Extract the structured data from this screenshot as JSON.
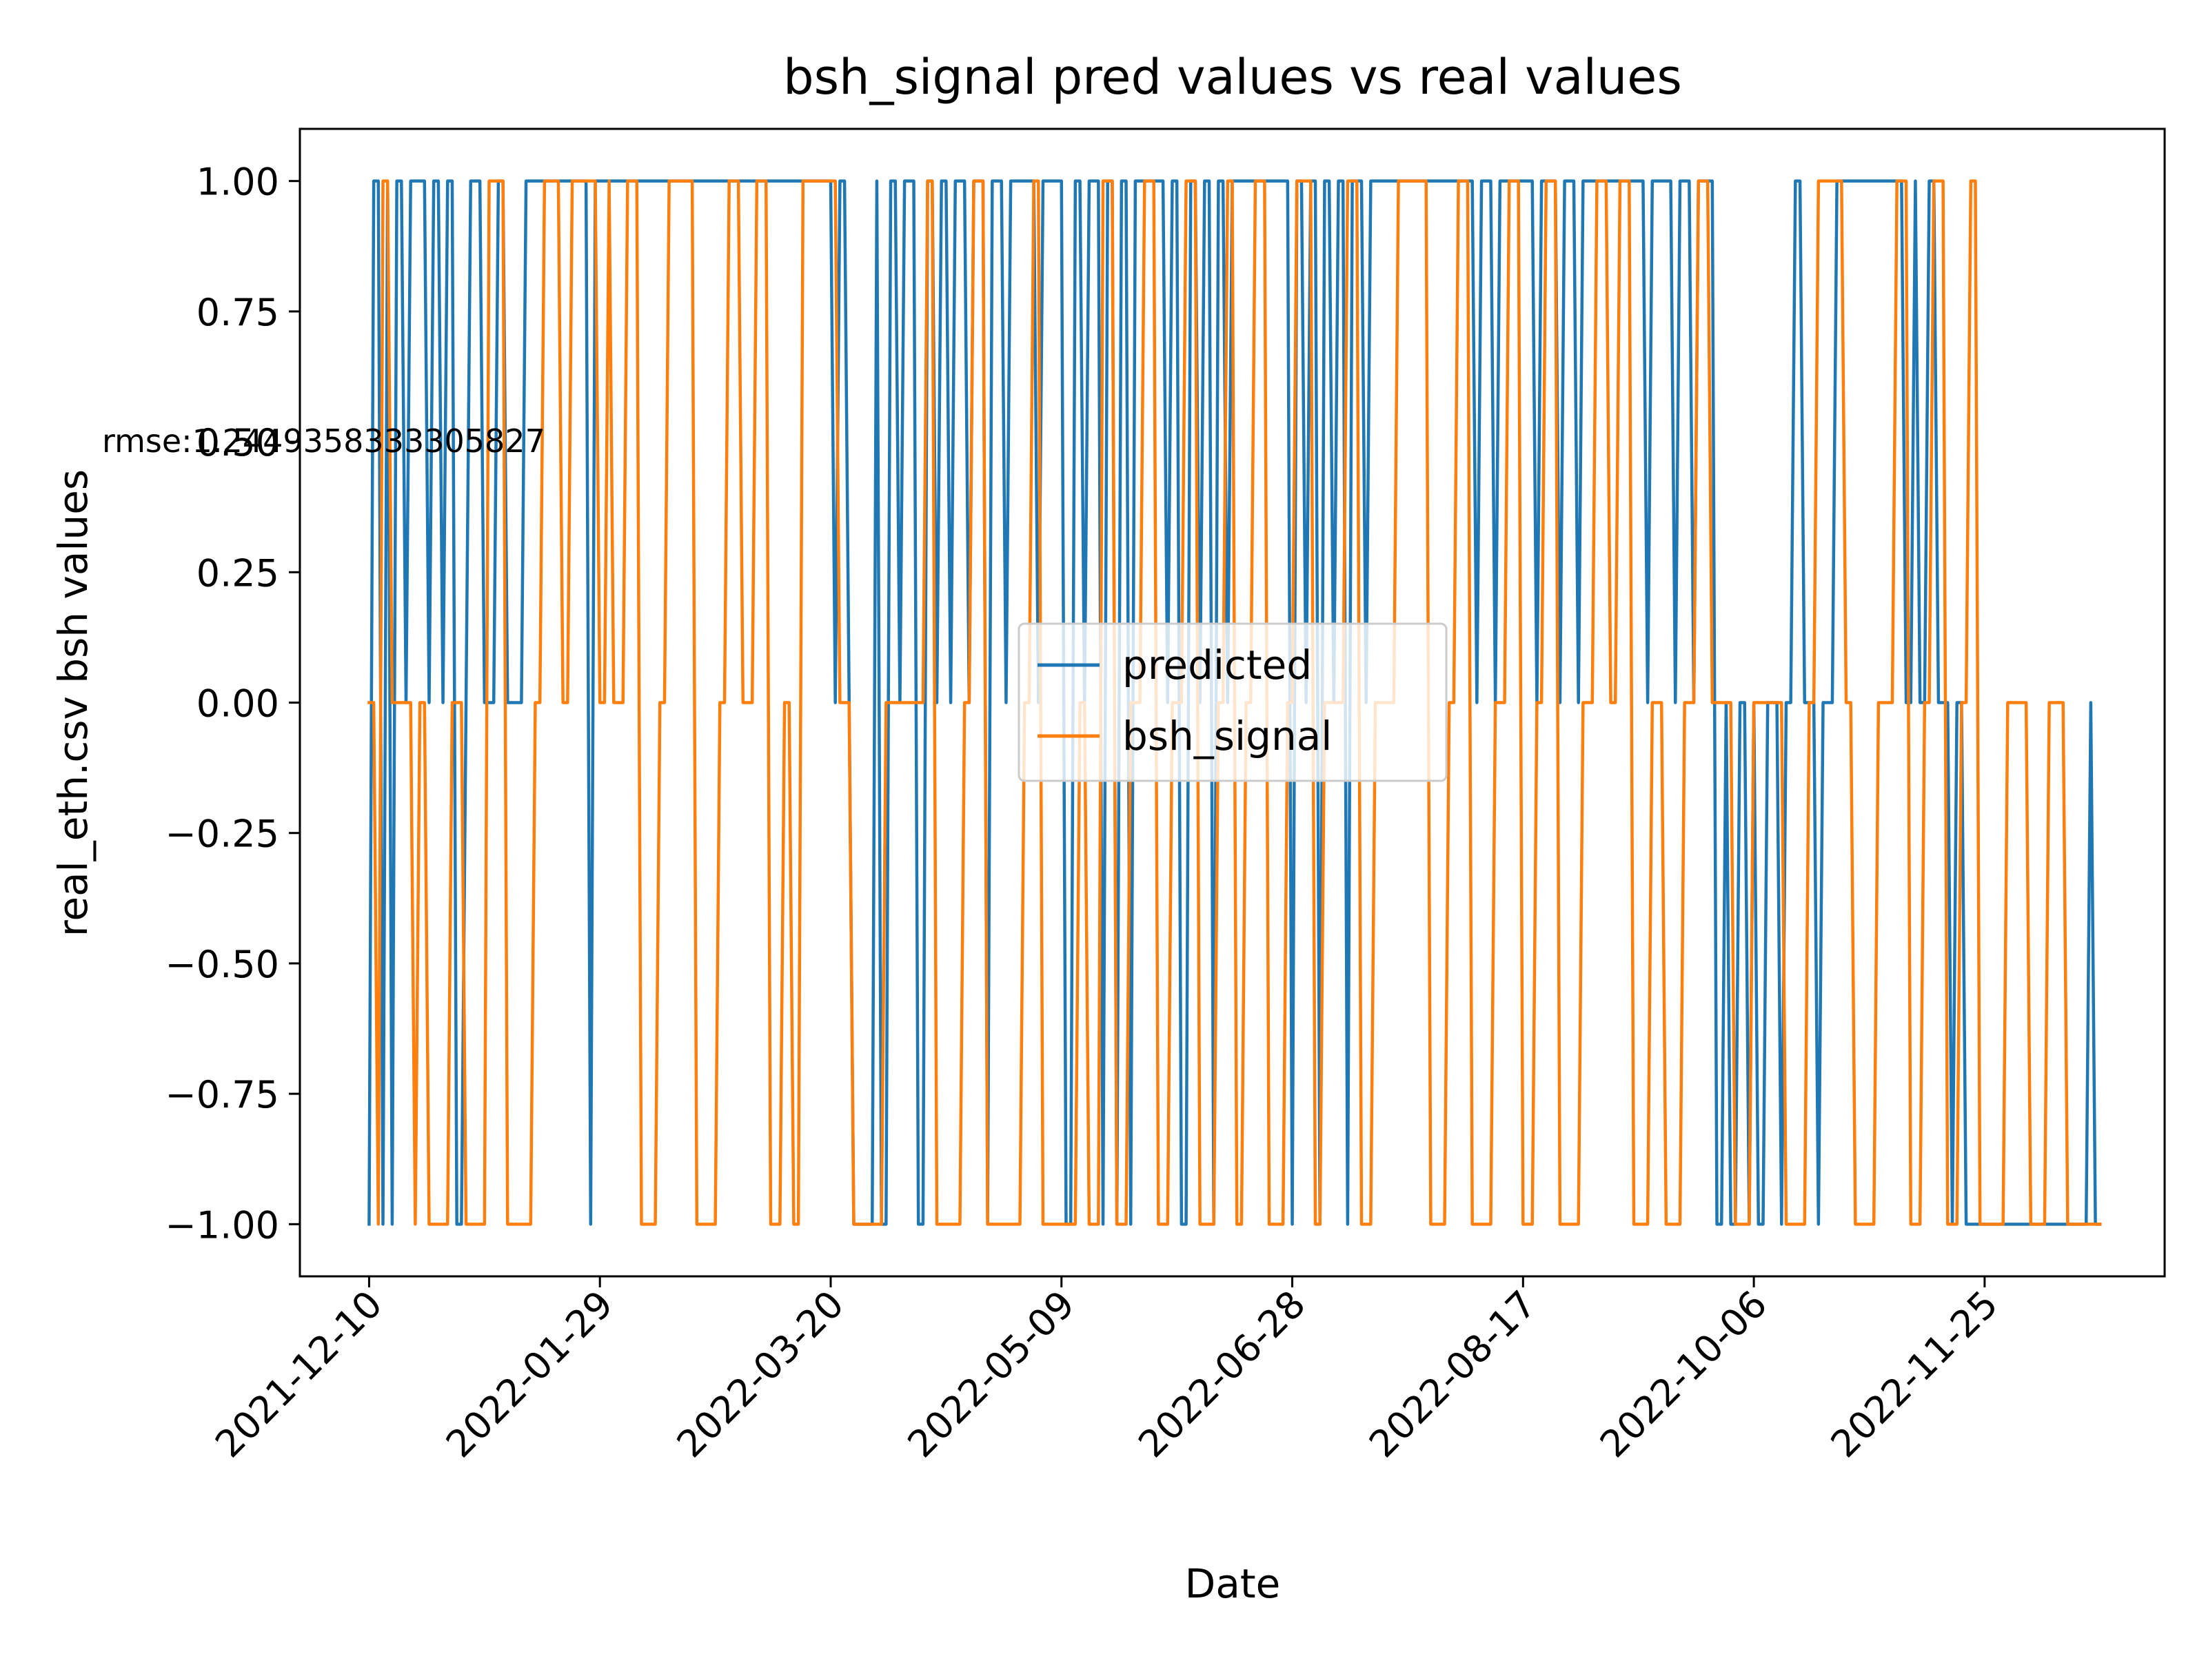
{
  "chart_data": {
    "type": "line",
    "title": "bsh_signal pred values vs real values",
    "xlabel": "Date",
    "ylabel": "real_eth.csv bsh values",
    "annotation": "rmse:1.2449358333305827",
    "x_start": "2021-12-10",
    "x_end": "2022-12-20",
    "xlim": [
      "2021-11-25",
      "2023-01-03"
    ],
    "ylim": [
      -1.1,
      1.1
    ],
    "x_ticks": [
      "2021-12-10",
      "2022-01-29",
      "2022-03-20",
      "2022-05-09",
      "2022-06-28",
      "2022-08-17",
      "2022-10-06",
      "2022-11-25"
    ],
    "y_ticks": [
      1.0,
      0.75,
      0.5,
      0.25,
      0.0,
      -0.25,
      -0.5,
      -0.75,
      -1.0
    ],
    "y_tick_labels": [
      "1.00",
      "0.75",
      "0.50",
      "0.25",
      "0.00",
      "−0.25",
      "−0.50",
      "−0.75",
      "−1.00"
    ],
    "legend": {
      "placement": "center"
    },
    "grid": false,
    "series": [
      {
        "name": "predicted",
        "color": "#1f77b4",
        "steps": [
          [
            "2021-12-10",
            -1
          ],
          [
            "2021-12-11",
            1
          ],
          [
            "2021-12-13",
            -1
          ],
          [
            "2021-12-14",
            1
          ],
          [
            "2021-12-15",
            -1
          ],
          [
            "2021-12-16",
            1
          ],
          [
            "2021-12-18",
            0
          ],
          [
            "2021-12-19",
            1
          ],
          [
            "2021-12-23",
            0
          ],
          [
            "2021-12-24",
            1
          ],
          [
            "2021-12-26",
            0
          ],
          [
            "2021-12-27",
            1
          ],
          [
            "2021-12-29",
            -1
          ],
          [
            "2021-12-31",
            0
          ],
          [
            "2022-01-01",
            1
          ],
          [
            "2022-01-04",
            0
          ],
          [
            "2022-01-07",
            1
          ],
          [
            "2022-01-09",
            0
          ],
          [
            "2022-01-13",
            1
          ],
          [
            "2022-01-27",
            -1
          ],
          [
            "2022-01-28",
            1
          ],
          [
            "2022-03-21",
            0
          ],
          [
            "2022-03-22",
            1
          ],
          [
            "2022-03-24",
            0
          ],
          [
            "2022-03-25",
            -1
          ],
          [
            "2022-03-30",
            1
          ],
          [
            "2022-03-31",
            -1
          ],
          [
            "2022-04-02",
            1
          ],
          [
            "2022-04-04",
            0
          ],
          [
            "2022-04-05",
            1
          ],
          [
            "2022-04-08",
            -1
          ],
          [
            "2022-04-10",
            1
          ],
          [
            "2022-04-12",
            0
          ],
          [
            "2022-04-13",
            1
          ],
          [
            "2022-04-15",
            0
          ],
          [
            "2022-04-16",
            1
          ],
          [
            "2022-04-19",
            0
          ],
          [
            "2022-04-20",
            1
          ],
          [
            "2022-04-23",
            -1
          ],
          [
            "2022-04-24",
            1
          ],
          [
            "2022-04-27",
            0
          ],
          [
            "2022-04-28",
            1
          ],
          [
            "2022-05-04",
            0
          ],
          [
            "2022-05-05",
            1
          ],
          [
            "2022-05-10",
            -1
          ],
          [
            "2022-05-12",
            1
          ],
          [
            "2022-05-14",
            0
          ],
          [
            "2022-05-15",
            1
          ],
          [
            "2022-05-18",
            -1
          ],
          [
            "2022-05-19",
            1
          ],
          [
            "2022-05-21",
            -1
          ],
          [
            "2022-05-22",
            1
          ],
          [
            "2022-05-24",
            -1
          ],
          [
            "2022-05-25",
            1
          ],
          [
            "2022-06-01",
            0
          ],
          [
            "2022-06-02",
            1
          ],
          [
            "2022-06-04",
            -1
          ],
          [
            "2022-06-06",
            1
          ],
          [
            "2022-06-08",
            0
          ],
          [
            "2022-06-09",
            1
          ],
          [
            "2022-06-11",
            -1
          ],
          [
            "2022-06-12",
            1
          ],
          [
            "2022-06-14",
            0
          ],
          [
            "2022-06-15",
            1
          ],
          [
            "2022-06-28",
            -1
          ],
          [
            "2022-06-29",
            1
          ],
          [
            "2022-07-01",
            0
          ],
          [
            "2022-07-02",
            1
          ],
          [
            "2022-07-04",
            -1
          ],
          [
            "2022-07-05",
            1
          ],
          [
            "2022-07-07",
            0
          ],
          [
            "2022-07-08",
            1
          ],
          [
            "2022-07-10",
            -1
          ],
          [
            "2022-07-11",
            1
          ],
          [
            "2022-07-14",
            0
          ],
          [
            "2022-07-15",
            1
          ],
          [
            "2022-08-07",
            0
          ],
          [
            "2022-08-08",
            1
          ],
          [
            "2022-08-11",
            0
          ],
          [
            "2022-08-12",
            1
          ],
          [
            "2022-08-20",
            0
          ],
          [
            "2022-08-21",
            1
          ],
          [
            "2022-08-25",
            0
          ],
          [
            "2022-08-26",
            1
          ],
          [
            "2022-08-29",
            0
          ],
          [
            "2022-08-30",
            1
          ],
          [
            "2022-09-13",
            0
          ],
          [
            "2022-09-14",
            1
          ],
          [
            "2022-09-19",
            0
          ],
          [
            "2022-09-20",
            1
          ],
          [
            "2022-09-23",
            0
          ],
          [
            "2022-09-24",
            1
          ],
          [
            "2022-09-28",
            -1
          ],
          [
            "2022-09-30",
            0
          ],
          [
            "2022-10-01",
            -1
          ],
          [
            "2022-10-03",
            0
          ],
          [
            "2022-10-05",
            -1
          ],
          [
            "2022-10-06",
            0
          ],
          [
            "2022-10-07",
            -1
          ],
          [
            "2022-10-09",
            0
          ],
          [
            "2022-10-12",
            -1
          ],
          [
            "2022-10-13",
            0
          ],
          [
            "2022-10-15",
            1
          ],
          [
            "2022-10-17",
            0
          ],
          [
            "2022-10-20",
            -1
          ],
          [
            "2022-10-21",
            0
          ],
          [
            "2022-10-24",
            1
          ],
          [
            "2022-11-08",
            0
          ],
          [
            "2022-11-10",
            1
          ],
          [
            "2022-11-11",
            0
          ],
          [
            "2022-11-13",
            1
          ],
          [
            "2022-11-15",
            0
          ],
          [
            "2022-11-18",
            -1
          ],
          [
            "2022-11-19",
            0
          ],
          [
            "2022-11-21",
            -1
          ],
          [
            "2022-12-18",
            0
          ],
          [
            "2022-12-19",
            -1
          ],
          [
            "2022-12-20",
            -1
          ]
        ]
      },
      {
        "name": "bsh_signal",
        "color": "#ff7f0e",
        "steps": [
          [
            "2021-12-10",
            0
          ],
          [
            "2021-12-12",
            -1
          ],
          [
            "2021-12-13",
            1
          ],
          [
            "2021-12-15",
            0
          ],
          [
            "2021-12-20",
            -1
          ],
          [
            "2021-12-21",
            0
          ],
          [
            "2021-12-23",
            -1
          ],
          [
            "2021-12-28",
            0
          ],
          [
            "2021-12-31",
            -1
          ],
          [
            "2022-01-05",
            1
          ],
          [
            "2022-01-09",
            -1
          ],
          [
            "2022-01-15",
            0
          ],
          [
            "2022-01-17",
            1
          ],
          [
            "2022-01-21",
            0
          ],
          [
            "2022-01-23",
            1
          ],
          [
            "2022-01-29",
            0
          ],
          [
            "2022-01-31",
            1
          ],
          [
            "2022-02-01",
            0
          ],
          [
            "2022-02-04",
            1
          ],
          [
            "2022-02-07",
            -1
          ],
          [
            "2022-02-11",
            0
          ],
          [
            "2022-02-13",
            1
          ],
          [
            "2022-02-19",
            -1
          ],
          [
            "2022-02-24",
            0
          ],
          [
            "2022-02-26",
            1
          ],
          [
            "2022-03-01",
            0
          ],
          [
            "2022-03-04",
            1
          ],
          [
            "2022-03-07",
            -1
          ],
          [
            "2022-03-10",
            0
          ],
          [
            "2022-03-12",
            -1
          ],
          [
            "2022-03-14",
            1
          ],
          [
            "2022-03-22",
            0
          ],
          [
            "2022-03-25",
            -1
          ],
          [
            "2022-04-01",
            0
          ],
          [
            "2022-04-10",
            1
          ],
          [
            "2022-04-12",
            -1
          ],
          [
            "2022-04-18",
            0
          ],
          [
            "2022-04-20",
            1
          ],
          [
            "2022-04-23",
            -1
          ],
          [
            "2022-05-01",
            0
          ],
          [
            "2022-05-03",
            1
          ],
          [
            "2022-05-05",
            -1
          ],
          [
            "2022-05-13",
            0
          ],
          [
            "2022-05-15",
            -1
          ],
          [
            "2022-05-18",
            1
          ],
          [
            "2022-05-21",
            -1
          ],
          [
            "2022-05-24",
            0
          ],
          [
            "2022-05-27",
            1
          ],
          [
            "2022-05-30",
            -1
          ],
          [
            "2022-06-02",
            0
          ],
          [
            "2022-06-05",
            1
          ],
          [
            "2022-06-08",
            -1
          ],
          [
            "2022-06-12",
            0
          ],
          [
            "2022-06-14",
            1
          ],
          [
            "2022-06-16",
            -1
          ],
          [
            "2022-06-18",
            0
          ],
          [
            "2022-06-20",
            1
          ],
          [
            "2022-06-23",
            -1
          ],
          [
            "2022-06-27",
            0
          ],
          [
            "2022-06-29",
            1
          ],
          [
            "2022-07-03",
            -1
          ],
          [
            "2022-07-05",
            0
          ],
          [
            "2022-07-10",
            1
          ],
          [
            "2022-07-13",
            -1
          ],
          [
            "2022-07-16",
            0
          ],
          [
            "2022-07-21",
            1
          ],
          [
            "2022-07-28",
            -1
          ],
          [
            "2022-08-01",
            0
          ],
          [
            "2022-08-03",
            1
          ],
          [
            "2022-08-06",
            -1
          ],
          [
            "2022-08-11",
            0
          ],
          [
            "2022-08-14",
            1
          ],
          [
            "2022-08-17",
            -1
          ],
          [
            "2022-08-20",
            0
          ],
          [
            "2022-08-22",
            1
          ],
          [
            "2022-08-25",
            -1
          ],
          [
            "2022-08-30",
            0
          ],
          [
            "2022-09-02",
            1
          ],
          [
            "2022-09-05",
            0
          ],
          [
            "2022-09-07",
            1
          ],
          [
            "2022-09-10",
            -1
          ],
          [
            "2022-09-14",
            0
          ],
          [
            "2022-09-17",
            -1
          ],
          [
            "2022-09-21",
            0
          ],
          [
            "2022-09-24",
            1
          ],
          [
            "2022-09-27",
            0
          ],
          [
            "2022-10-02",
            -1
          ],
          [
            "2022-10-06",
            0
          ],
          [
            "2022-10-13",
            -1
          ],
          [
            "2022-10-18",
            0
          ],
          [
            "2022-10-20",
            1
          ],
          [
            "2022-10-26",
            0
          ],
          [
            "2022-10-28",
            -1
          ],
          [
            "2022-11-02",
            0
          ],
          [
            "2022-11-06",
            1
          ],
          [
            "2022-11-09",
            -1
          ],
          [
            "2022-11-12",
            0
          ],
          [
            "2022-11-14",
            1
          ],
          [
            "2022-11-17",
            -1
          ],
          [
            "2022-11-20",
            0
          ],
          [
            "2022-11-22",
            1
          ],
          [
            "2022-11-24",
            -1
          ],
          [
            "2022-11-30",
            0
          ],
          [
            "2022-12-05",
            -1
          ],
          [
            "2022-12-09",
            0
          ],
          [
            "2022-12-13",
            -1
          ],
          [
            "2022-12-20",
            -1
          ]
        ]
      }
    ]
  }
}
